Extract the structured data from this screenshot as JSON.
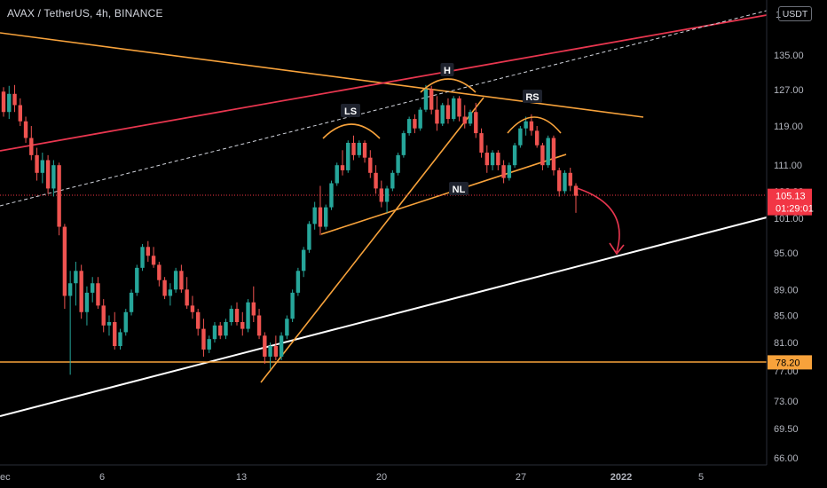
{
  "header": {
    "symbol_title": "AVAX / TetherUS, 4h, BINANCE",
    "currency_button": "USDT"
  },
  "colors": {
    "background": "#000000",
    "up_candle": "#26a69a",
    "down_candle": "#ef5350",
    "orange_line": "#f7a23b",
    "red_line": "#e8364f",
    "white_line": "#ffffff",
    "price_label_bg": "#f23645",
    "orange_label_bg": "#f7a23b",
    "axis_text": "#b2b5be",
    "pattern_label_bg": "#1e222d"
  },
  "chart_data": {
    "type": "candlestick",
    "title": "AVAX / TetherUS, 4h, BINANCE",
    "y_axis": {
      "scale": "log",
      "ticks": [
        "1",
        "135.00",
        "127.00",
        "119.00",
        "111.00",
        "106.00",
        "101.00",
        "95.00",
        "89.00",
        "85.00",
        "81.00",
        "77.00",
        "73.00",
        "69.50",
        "66.00"
      ]
    },
    "x_axis": {
      "ticks": [
        "ec",
        "6",
        "13",
        "20",
        "27",
        "2022",
        "5"
      ]
    },
    "current_price": {
      "value": 105.13,
      "label": "105.13",
      "countdown": "01:29:01"
    },
    "horizontal_level": {
      "value": 78.2,
      "label": "78.20"
    },
    "pattern": {
      "name": "head and shoulders",
      "labels": [
        "LS",
        "H",
        "RS",
        "NL"
      ]
    },
    "candles": [
      [
        126.5,
        127.5,
        121,
        122
      ],
      [
        122,
        127.8,
        120.5,
        126
      ],
      [
        126,
        128,
        122,
        123.5
      ],
      [
        123.5,
        125,
        119,
        120
      ],
      [
        120,
        121,
        115.5,
        116.5
      ],
      [
        116.5,
        119,
        112,
        113
      ],
      [
        113,
        114.5,
        108,
        109.5
      ],
      [
        109.5,
        113.5,
        107.5,
        112
      ],
      [
        112,
        113,
        105.5,
        106.5
      ],
      [
        106.5,
        112,
        105,
        111
      ],
      [
        111,
        111.5,
        98,
        99.5
      ],
      [
        99.5,
        100,
        86,
        88
      ],
      [
        88,
        92,
        76.5,
        90
      ],
      [
        90,
        93.5,
        86.5,
        92
      ],
      [
        92,
        93,
        84.5,
        85.5
      ],
      [
        85.5,
        89.5,
        83.5,
        88.5
      ],
      [
        88.5,
        91,
        87,
        90
      ],
      [
        90,
        91,
        86,
        86.5
      ],
      [
        86.5,
        87.5,
        82.5,
        83.5
      ],
      [
        83.5,
        85,
        82,
        84
      ],
      [
        84,
        85.5,
        80,
        80.5
      ],
      [
        80.5,
        83,
        80,
        82.5
      ],
      [
        82.5,
        86,
        82,
        85.5
      ],
      [
        85.5,
        89,
        85,
        88.5
      ],
      [
        88.5,
        93,
        88,
        92.5
      ],
      [
        92.5,
        96.5,
        92,
        96
      ],
      [
        96,
        97,
        93.5,
        94.5
      ],
      [
        94.5,
        96,
        92.5,
        93
      ],
      [
        93,
        93.5,
        89.5,
        90.5
      ],
      [
        90.5,
        91,
        87.5,
        88
      ],
      [
        88,
        90,
        86.5,
        89
      ],
      [
        89,
        92.5,
        88.5,
        92
      ],
      [
        92,
        93,
        88.5,
        89
      ],
      [
        89,
        91,
        86,
        86.5
      ],
      [
        86.5,
        88,
        84.5,
        85.5
      ],
      [
        85.5,
        86,
        82,
        83
      ],
      [
        83,
        84.5,
        79,
        80
      ],
      [
        80,
        82,
        79.5,
        81.5
      ],
      [
        81.5,
        84,
        81,
        83.5
      ],
      [
        83.5,
        84,
        81.5,
        82
      ],
      [
        82,
        84.5,
        81.5,
        84
      ],
      [
        84,
        86.5,
        83.5,
        86
      ],
      [
        86,
        87,
        83.5,
        84
      ],
      [
        84,
        85.5,
        82,
        83
      ],
      [
        83,
        87.5,
        82.5,
        87
      ],
      [
        87,
        89.5,
        84,
        85
      ],
      [
        85,
        86,
        81.5,
        82
      ],
      [
        82,
        82.5,
        78,
        79
      ],
      [
        79,
        81,
        77.3,
        80.5
      ],
      [
        80.5,
        82,
        78.5,
        79
      ],
      [
        79,
        82.5,
        78.5,
        82
      ],
      [
        82,
        85,
        81.5,
        84.5
      ],
      [
        84.5,
        89,
        84,
        88.5
      ],
      [
        88.5,
        92.5,
        88,
        92
      ],
      [
        92,
        96,
        91,
        95.5
      ],
      [
        95.5,
        100.5,
        95,
        100
      ],
      [
        100,
        104,
        99,
        103
      ],
      [
        103,
        107,
        98,
        99.5
      ],
      [
        99.5,
        103.5,
        99,
        103
      ],
      [
        103,
        108,
        102.5,
        107.5
      ],
      [
        107.5,
        111.5,
        107,
        111
      ],
      [
        111,
        114,
        109,
        110
      ],
      [
        110,
        116,
        109.5,
        115.5
      ],
      [
        115.5,
        117,
        112,
        113
      ],
      [
        113,
        116,
        112.5,
        115.5
      ],
      [
        115.5,
        116,
        111.5,
        112.5
      ],
      [
        112.5,
        114,
        108.5,
        109.5
      ],
      [
        109.5,
        111,
        105.5,
        106.5
      ],
      [
        106.5,
        108,
        103,
        104
      ],
      [
        104,
        107,
        102,
        106.5
      ],
      [
        106.5,
        110,
        106,
        109.5
      ],
      [
        109.5,
        113.5,
        109,
        113
      ],
      [
        113,
        118,
        112.5,
        117.5
      ],
      [
        117.5,
        121,
        117,
        120.5
      ],
      [
        120.5,
        121.5,
        117.5,
        118.5
      ],
      [
        118.5,
        123,
        118,
        122.5
      ],
      [
        122.5,
        128,
        122,
        127
      ],
      [
        127,
        127.8,
        121.5,
        122.5
      ],
      [
        122.5,
        125.5,
        118,
        119.5
      ],
      [
        119.5,
        124,
        119,
        123.5
      ],
      [
        123.5,
        125,
        119.5,
        120.5
      ],
      [
        120.5,
        125.5,
        120,
        125
      ],
      [
        125,
        125.5,
        120,
        121
      ],
      [
        121,
        123.5,
        118.5,
        119.5
      ],
      [
        119.5,
        122.5,
        119,
        122
      ],
      [
        122,
        124,
        116.5,
        117.5
      ],
      [
        117.5,
        118.5,
        112.5,
        113.5
      ],
      [
        113.5,
        115,
        109.5,
        111
      ],
      [
        111,
        114,
        110,
        113.5
      ],
      [
        113.5,
        114,
        110,
        111
      ],
      [
        111,
        112,
        107.5,
        108.5
      ],
      [
        108.5,
        111.5,
        108,
        111
      ],
      [
        111,
        115.5,
        110.5,
        115
      ],
      [
        115,
        119,
        114.5,
        118.5
      ],
      [
        118.5,
        121,
        117,
        120
      ],
      [
        120,
        121.5,
        117,
        118
      ],
      [
        118,
        119,
        114.5,
        115
      ],
      [
        115,
        115.5,
        110,
        111
      ],
      [
        111,
        117,
        110.5,
        116.5
      ],
      [
        116.5,
        117,
        109,
        110
      ],
      [
        110,
        110.5,
        105,
        106
      ],
      [
        106,
        110,
        105.5,
        109.5
      ],
      [
        109.5,
        110.5,
        106,
        107
      ],
      [
        107,
        107.5,
        102,
        105.13
      ]
    ]
  }
}
